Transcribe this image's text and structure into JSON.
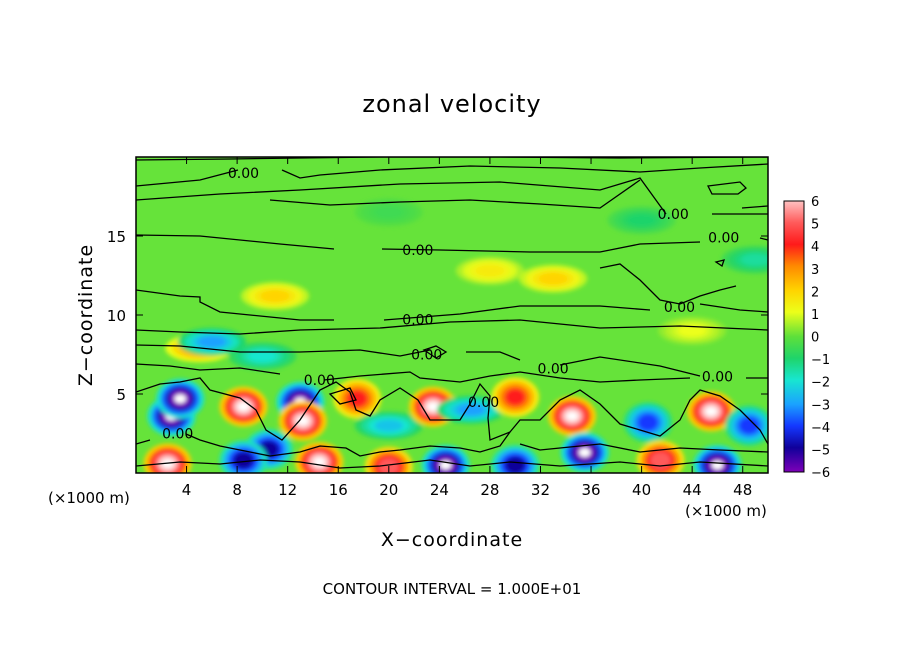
{
  "chart_data": {
    "type": "heatmap",
    "title": "zonal velocity",
    "xlabel": "X−coordinate",
    "ylabel": "Z−coordinate",
    "x_unit": "(×1000 m)",
    "x_unit_right": "(×1000 m)",
    "xlim": [
      0,
      50
    ],
    "ylim": [
      0,
      20
    ],
    "x_ticks": [
      4,
      8,
      12,
      16,
      20,
      24,
      28,
      32,
      36,
      40,
      44,
      48
    ],
    "y_ticks": [
      5,
      10,
      15
    ],
    "note": "CONTOUR INTERVAL = 1.000E+01",
    "colorbar": {
      "ticks": [
        "6",
        "5",
        "4",
        "3",
        "2",
        "1",
        "0",
        "−1",
        "−2",
        "−3",
        "−4",
        "−5",
        "−6"
      ],
      "range": [
        -6,
        6
      ]
    },
    "contour_labels": [
      {
        "text": "0.00",
        "x": 8.5,
        "z": 19.0
      },
      {
        "text": "0.00",
        "x": 22.3,
        "z": 14.1
      },
      {
        "text": "0.00",
        "x": 22.3,
        "z": 9.7
      },
      {
        "text": "0.00",
        "x": 42.5,
        "z": 16.4
      },
      {
        "text": "0.00",
        "x": 46.5,
        "z": 14.9
      },
      {
        "text": "0.00",
        "x": 43.0,
        "z": 10.5
      },
      {
        "text": "0.00",
        "x": 14.5,
        "z": 5.9
      },
      {
        "text": "0.00",
        "x": 23.0,
        "z": 7.5
      },
      {
        "text": "0.00",
        "x": 33.0,
        "z": 6.6
      },
      {
        "text": "0.00",
        "x": 46.0,
        "z": 6.1
      },
      {
        "text": "0.00",
        "x": 27.5,
        "z": 4.5
      },
      {
        "text": "0.00",
        "x": 3.3,
        "z": 2.5
      }
    ],
    "anomalies": [
      {
        "x": 2.8,
        "z": 3.6,
        "value": -6
      },
      {
        "x": 3.5,
        "z": 4.7,
        "value": -6
      },
      {
        "x": 8.5,
        "z": 4.2,
        "value": 6
      },
      {
        "x": 10.5,
        "z": 1.5,
        "value": -5
      },
      {
        "x": 13.0,
        "z": 4.5,
        "value": -6
      },
      {
        "x": 13.2,
        "z": 3.3,
        "value": 6
      },
      {
        "x": 17.5,
        "z": 4.7,
        "value": 4
      },
      {
        "x": 20.0,
        "z": 3.0,
        "value": -2.5
      },
      {
        "x": 23.5,
        "z": 4.2,
        "value": 6
      },
      {
        "x": 26.5,
        "z": 4.0,
        "value": -3
      },
      {
        "x": 30.0,
        "z": 4.8,
        "value": 4
      },
      {
        "x": 34.5,
        "z": 3.6,
        "value": 6
      },
      {
        "x": 35.5,
        "z": 1.3,
        "value": -6
      },
      {
        "x": 40.5,
        "z": 3.2,
        "value": -4
      },
      {
        "x": 45.5,
        "z": 3.9,
        "value": 6
      },
      {
        "x": 48.5,
        "z": 3.0,
        "value": -4
      },
      {
        "x": 2.5,
        "z": 0.6,
        "value": 6
      },
      {
        "x": 8.5,
        "z": 0.8,
        "value": -5
      },
      {
        "x": 14.5,
        "z": 0.7,
        "value": 6
      },
      {
        "x": 20.0,
        "z": 0.4,
        "value": 5
      },
      {
        "x": 24.5,
        "z": 0.5,
        "value": -6
      },
      {
        "x": 30.0,
        "z": 0.5,
        "value": -5
      },
      {
        "x": 41.5,
        "z": 0.8,
        "value": 5
      },
      {
        "x": 46.0,
        "z": 0.5,
        "value": -6
      },
      {
        "x": 5.0,
        "z": 7.9,
        "value": 3
      },
      {
        "x": 10.0,
        "z": 7.4,
        "value": -2
      },
      {
        "x": 6.0,
        "z": 8.3,
        "value": -3
      },
      {
        "x": 11.0,
        "z": 11.2,
        "value": 2
      },
      {
        "x": 28.0,
        "z": 12.8,
        "value": 1.5
      },
      {
        "x": 33.0,
        "z": 12.3,
        "value": 2
      },
      {
        "x": 44.0,
        "z": 9.0,
        "value": 1
      },
      {
        "x": 49.0,
        "z": 13.5,
        "value": -1.5
      },
      {
        "x": 40.0,
        "z": 16.0,
        "value": -1
      },
      {
        "x": 20.0,
        "z": 16.5,
        "value": -0.5
      }
    ]
  }
}
